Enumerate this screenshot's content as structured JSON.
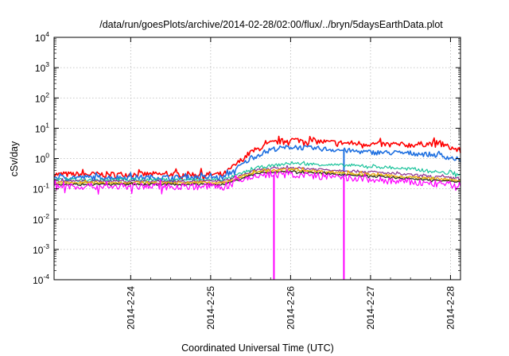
{
  "chart_data": {
    "type": "line",
    "title": "/data/run/goesPlots/archive/2014-02-28/02:00/flux/../bryn/5daysEarthData.plot",
    "xlabel": "Coordinated Universal Time (UTC)",
    "ylabel": "cSv/day",
    "yscale": "log",
    "ylim": [
      0.0001,
      10000
    ],
    "xlim": [
      "2014-02-23T01:00",
      "2014-02-28T03:00"
    ],
    "grid": true,
    "legend": "none",
    "ytick_labels": [
      {
        "base": "10",
        "exp": "-4"
      },
      {
        "base": "10",
        "exp": "-3"
      },
      {
        "base": "10",
        "exp": "-2"
      },
      {
        "base": "10",
        "exp": "-1"
      },
      {
        "base": "10",
        "exp": "0"
      },
      {
        "base": "10",
        "exp": "1"
      },
      {
        "base": "10",
        "exp": "2"
      },
      {
        "base": "10",
        "exp": "3"
      },
      {
        "base": "10",
        "exp": "4"
      }
    ],
    "xtick_labels": [
      "2014-2-24",
      "2014-2-25",
      "2014-2-26",
      "2014-2-27",
      "2014-2-28"
    ],
    "series": [
      {
        "color": "#ff0000",
        "noise": 0.09,
        "x": [
          "2014-02-23T01:00",
          "2014-02-25T04:00",
          "2014-02-25T12:00",
          "2014-02-25T18:00",
          "2014-02-26T00:00",
          "2014-02-26T06:00",
          "2014-02-26T12:00",
          "2014-02-27T00:00",
          "2014-02-27T12:00",
          "2014-02-27T20:00",
          "2014-02-28T03:00"
        ],
        "y": [
          0.3,
          0.3,
          1.6,
          3.2,
          4.2,
          3.8,
          3.4,
          3.0,
          2.8,
          3.2,
          1.8
        ]
      },
      {
        "color": "#1f70e0",
        "noise": 0.08,
        "drop_at": "2014-02-26T16:00",
        "x": [
          "2014-02-23T01:00",
          "2014-02-25T04:00",
          "2014-02-25T12:00",
          "2014-02-25T18:00",
          "2014-02-26T00:00",
          "2014-02-26T06:00",
          "2014-02-26T12:00",
          "2014-02-27T00:00",
          "2014-02-27T12:00",
          "2014-02-27T20:00",
          "2014-02-28T03:00"
        ],
        "y": [
          0.24,
          0.24,
          1.0,
          2.0,
          2.4,
          2.2,
          2.0,
          1.6,
          1.5,
          1.3,
          0.9
        ]
      },
      {
        "color": "#19c29a",
        "noise": 0.05,
        "x": [
          "2014-02-23T01:00",
          "2014-02-25T04:00",
          "2014-02-25T14:00",
          "2014-02-26T00:00",
          "2014-02-26T12:00",
          "2014-02-27T00:00",
          "2014-02-27T12:00",
          "2014-02-28T03:00"
        ],
        "y": [
          0.2,
          0.2,
          0.5,
          0.7,
          0.62,
          0.55,
          0.45,
          0.3
        ]
      },
      {
        "color": "#8c2e8c",
        "noise": 0.04,
        "x": [
          "2014-02-23T01:00",
          "2014-02-25T04:00",
          "2014-02-25T14:00",
          "2014-02-26T00:00",
          "2014-02-27T00:00",
          "2014-02-28T03:00"
        ],
        "y": [
          0.18,
          0.18,
          0.42,
          0.5,
          0.36,
          0.22
        ]
      },
      {
        "color": "#f2a000",
        "noise": 0.04,
        "x": [
          "2014-02-23T01:00",
          "2014-02-25T04:00",
          "2014-02-25T14:00",
          "2014-02-26T00:00",
          "2014-02-27T00:00",
          "2014-02-28T03:00"
        ],
        "y": [
          0.16,
          0.16,
          0.38,
          0.44,
          0.3,
          0.19
        ]
      },
      {
        "color": "#d2be1e",
        "noise": 0.04,
        "x": [
          "2014-02-23T01:00",
          "2014-02-25T04:00",
          "2014-02-25T14:00",
          "2014-02-26T00:00",
          "2014-02-27T00:00",
          "2014-02-28T03:00"
        ],
        "y": [
          0.15,
          0.15,
          0.35,
          0.4,
          0.28,
          0.18
        ]
      },
      {
        "color": "#222222",
        "noise": 0.03,
        "x": [
          "2014-02-23T01:00",
          "2014-02-25T04:00",
          "2014-02-25T14:00",
          "2014-02-26T00:00",
          "2014-02-27T00:00",
          "2014-02-28T03:00"
        ],
        "y": [
          0.14,
          0.14,
          0.33,
          0.37,
          0.26,
          0.17
        ]
      },
      {
        "color": "#ff00ff",
        "noise": 0.12,
        "drop_at": [
          "2014-02-25T19:00",
          "2014-02-26T16:00"
        ],
        "x": [
          "2014-02-23T01:00",
          "2014-02-25T04:00",
          "2014-02-25T14:00",
          "2014-02-26T00:00",
          "2014-02-27T00:00",
          "2014-02-28T03:00"
        ],
        "y": [
          0.12,
          0.12,
          0.28,
          0.3,
          0.2,
          0.13
        ]
      }
    ]
  }
}
